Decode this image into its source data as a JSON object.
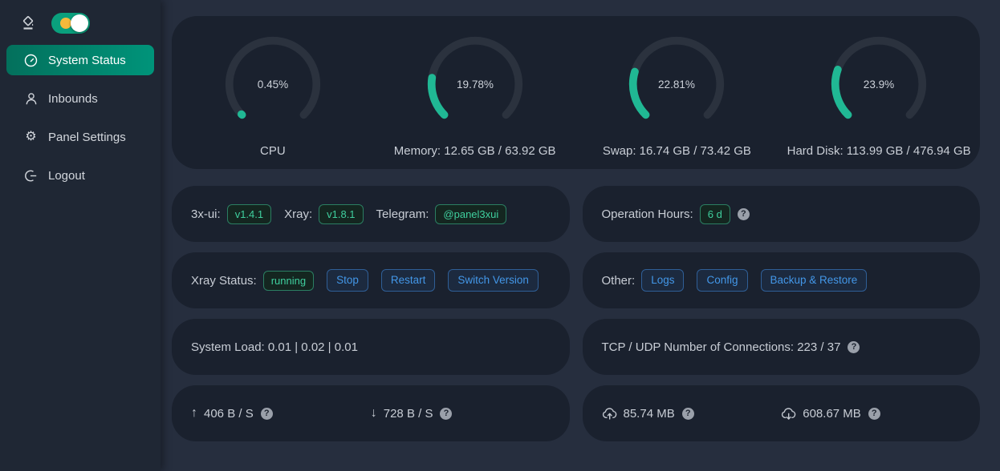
{
  "colors": {
    "accent_green": "#20b894",
    "sidebar_active_green": "#008771",
    "tag_green": "#3fcf9e",
    "button_blue": "#4397e8",
    "card_bg": "#1a212e",
    "page_bg": "#262e3e",
    "toggle_green": "#0aa07d",
    "toggle_sun_orange": "#f6b93b"
  },
  "icons": {
    "help": "?",
    "up_arrow": "↑",
    "down_arrow": "↓",
    "gear": "⚙"
  },
  "sidebar": {
    "items": [
      {
        "label": "System Status",
        "icon": "dashboard-icon",
        "active": true
      },
      {
        "label": "Inbounds",
        "icon": "user-icon",
        "active": false
      },
      {
        "label": "Panel Settings",
        "icon": "gear-icon",
        "active": false
      },
      {
        "label": "Logout",
        "icon": "logout-icon",
        "active": false
      }
    ]
  },
  "gauges": [
    {
      "percent": 0.45,
      "percent_label": "0.45%",
      "label": "CPU"
    },
    {
      "percent": 19.78,
      "percent_label": "19.78%",
      "label": "Memory: 12.65 GB / 63.92 GB"
    },
    {
      "percent": 22.81,
      "percent_label": "22.81%",
      "label": "Swap: 16.74 GB / 73.42 GB"
    },
    {
      "percent": 23.9,
      "percent_label": "23.9%",
      "label": "Hard Disk: 113.99 GB / 476.94 GB"
    }
  ],
  "chart_data": {
    "type": "gauge",
    "series": [
      {
        "name": "CPU",
        "percent": 0.45
      },
      {
        "name": "Memory",
        "percent": 19.78,
        "used": "12.65 GB",
        "total": "63.92 GB"
      },
      {
        "name": "Swap",
        "percent": 22.81,
        "used": "16.74 GB",
        "total": "73.42 GB"
      },
      {
        "name": "Hard Disk",
        "percent": 23.9,
        "used": "113.99 GB",
        "total": "476.94 GB"
      }
    ],
    "arc_sweep_degrees": 270
  },
  "info": {
    "xui_label": "3x-ui:",
    "xui_version": "v1.4.1",
    "xray_label": "Xray:",
    "xray_version": "v1.8.1",
    "telegram_label": "Telegram:",
    "telegram_handle": "@panel3xui",
    "operation_hours_label": "Operation Hours:",
    "operation_hours_value": "6 d",
    "xray_status_label": "Xray Status:",
    "xray_status_value": "running",
    "stop_button": "Stop",
    "restart_button": "Restart",
    "switch_version_button": "Switch Version",
    "other_label": "Other:",
    "logs_button": "Logs",
    "config_button": "Config",
    "backup_button": "Backup & Restore",
    "system_load": "System Load: 0.01 | 0.02 | 0.01",
    "connections": "TCP / UDP Number of Connections: 223 / 37",
    "upload_speed": "406 B / S",
    "download_speed": "728 B / S",
    "total_sent": "85.74 MB",
    "total_received": "608.67 MB"
  }
}
